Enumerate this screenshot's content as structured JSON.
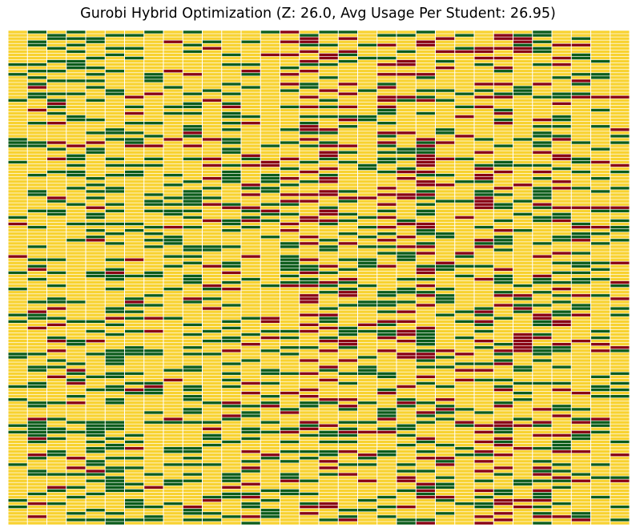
{
  "chart_data": {
    "type": "heatmap",
    "title": "Gurobi Hybrid Optimization (Z: 26.0, Avg Usage Per Student: 26.95)",
    "xlabel": "",
    "ylabel": "",
    "grid": false,
    "legend": "none",
    "n_columns": 32,
    "n_rows": 152,
    "cell_values": [
      "unused",
      "assigned",
      "overused"
    ],
    "colors": {
      "unused": "#f8d230",
      "assigned": "#0c5c1a",
      "overused": "#880012",
      "cell_border": "#ffffff"
    },
    "column_fractions": {
      "assigned": [
        0.14,
        0.28,
        0.25,
        0.22,
        0.28,
        0.35,
        0.22,
        0.2,
        0.22,
        0.22,
        0.14,
        0.22,
        0.18,
        0.2,
        0.2,
        0.16,
        0.18,
        0.24,
        0.15,
        0.2,
        0.18,
        0.22,
        0.18,
        0.14,
        0.18,
        0.2,
        0.2,
        0.22,
        0.25,
        0.22,
        0.15,
        0.18
      ],
      "overused": [
        0.02,
        0.05,
        0.05,
        0.04,
        0.03,
        0.02,
        0.07,
        0.06,
        0.06,
        0.03,
        0.08,
        0.08,
        0.09,
        0.07,
        0.13,
        0.2,
        0.16,
        0.14,
        0.05,
        0.14,
        0.14,
        0.2,
        0.09,
        0.08,
        0.18,
        0.16,
        0.1,
        0.14,
        0.09,
        0.14,
        0.09,
        0.09
      ]
    }
  }
}
